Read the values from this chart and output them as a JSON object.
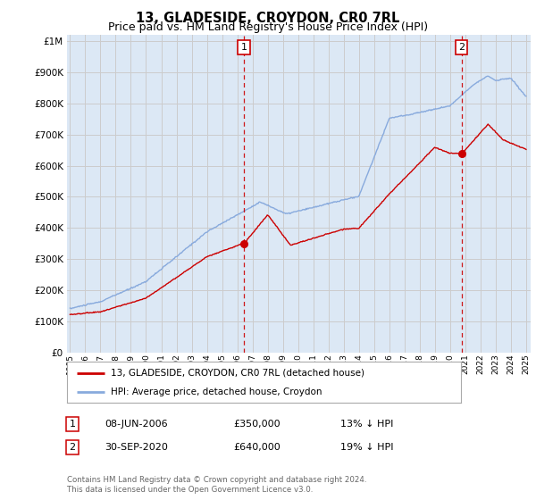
{
  "title": "13, GLADESIDE, CROYDON, CR0 7RL",
  "subtitle": "Price paid vs. HM Land Registry's House Price Index (HPI)",
  "title_fontsize": 10.5,
  "subtitle_fontsize": 9,
  "ytick_values": [
    0,
    100000,
    200000,
    300000,
    400000,
    500000,
    600000,
    700000,
    800000,
    900000,
    1000000
  ],
  "ylim": [
    0,
    1020000
  ],
  "xlim_start": 1994.8,
  "xlim_end": 2025.3,
  "sale1_x": 2006.44,
  "sale1_y": 350000,
  "sale1_label": "1",
  "sale2_x": 2020.75,
  "sale2_y": 640000,
  "sale2_label": "2",
  "property_color": "#cc0000",
  "hpi_color": "#88aadd",
  "vline_color": "#cc0000",
  "grid_color": "#cccccc",
  "background_color": "#ffffff",
  "plot_bg_color": "#dce8f5",
  "legend_line1": "13, GLADESIDE, CROYDON, CR0 7RL (detached house)",
  "legend_line2": "HPI: Average price, detached house, Croydon",
  "note1_num": "1",
  "note1_date": "08-JUN-2006",
  "note1_price": "£350,000",
  "note1_hpi": "13% ↓ HPI",
  "note2_num": "2",
  "note2_date": "30-SEP-2020",
  "note2_price": "£640,000",
  "note2_hpi": "19% ↓ HPI",
  "footer": "Contains HM Land Registry data © Crown copyright and database right 2024.\nThis data is licensed under the Open Government Licence v3.0."
}
